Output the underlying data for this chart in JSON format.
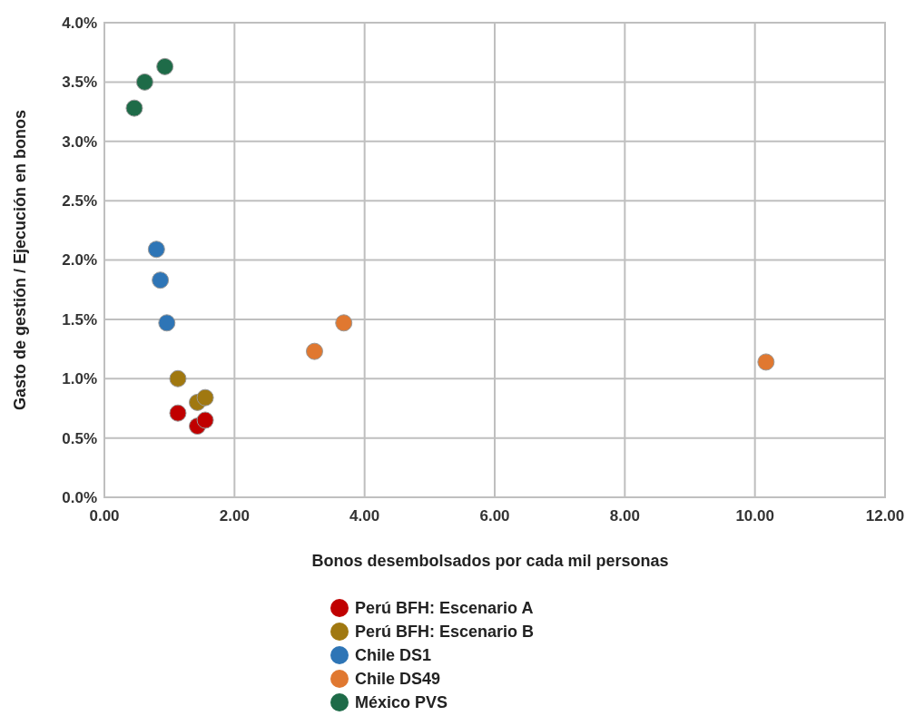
{
  "chart_data": {
    "type": "scatter",
    "xlabel": "Bonos desembolsados por cada mil personas",
    "ylabel": "Gasto de gestión / Ejecución en bonos",
    "xlim": [
      0,
      12
    ],
    "xticks": [
      {
        "value": 0,
        "label": "0.00"
      },
      {
        "value": 2,
        "label": "2.00"
      },
      {
        "value": 4,
        "label": "4.00"
      },
      {
        "value": 6,
        "label": "6.00"
      },
      {
        "value": 8,
        "label": "8.00"
      },
      {
        "value": 10,
        "label": "10.00"
      },
      {
        "value": 12,
        "label": "12.00"
      }
    ],
    "ylim": [
      0,
      4
    ],
    "yticks": [
      {
        "value": 0,
        "label": "0.0%"
      },
      {
        "value": 0.5,
        "label": "0.5%"
      },
      {
        "value": 1,
        "label": "1.0%"
      },
      {
        "value": 1.5,
        "label": "1.5%"
      },
      {
        "value": 2,
        "label": "2.0%"
      },
      {
        "value": 2.5,
        "label": "2.5%"
      },
      {
        "value": 3,
        "label": "3.0%"
      },
      {
        "value": 3.5,
        "label": "3.5%"
      },
      {
        "value": 4,
        "label": "4.0%"
      }
    ],
    "grid": true,
    "legend": "bottom",
    "marker": "circle",
    "series": [
      {
        "name": "Perú BFH: Escenario A",
        "color": "#c00000",
        "x": [
          1.13,
          1.43,
          1.55
        ],
        "values": [
          0.71,
          0.6,
          0.65
        ]
      },
      {
        "name": "Perú BFH: Escenario B",
        "color": "#a07810",
        "x": [
          1.13,
          1.43,
          1.55
        ],
        "values": [
          1.0,
          0.8,
          0.84
        ]
      },
      {
        "name": "Chile DS1",
        "color": "#2e75b6",
        "x": [
          0.8,
          0.86,
          0.96
        ],
        "values": [
          2.09,
          1.83,
          1.47
        ]
      },
      {
        "name": "Chile DS49",
        "color": "#e07830",
        "x": [
          3.23,
          3.68,
          10.17
        ],
        "values": [
          1.23,
          1.47,
          1.14
        ]
      },
      {
        "name": "México PVS",
        "color": "#1e6b48",
        "x": [
          0.46,
          0.62,
          0.93
        ],
        "values": [
          3.28,
          3.5,
          3.63
        ]
      }
    ]
  }
}
